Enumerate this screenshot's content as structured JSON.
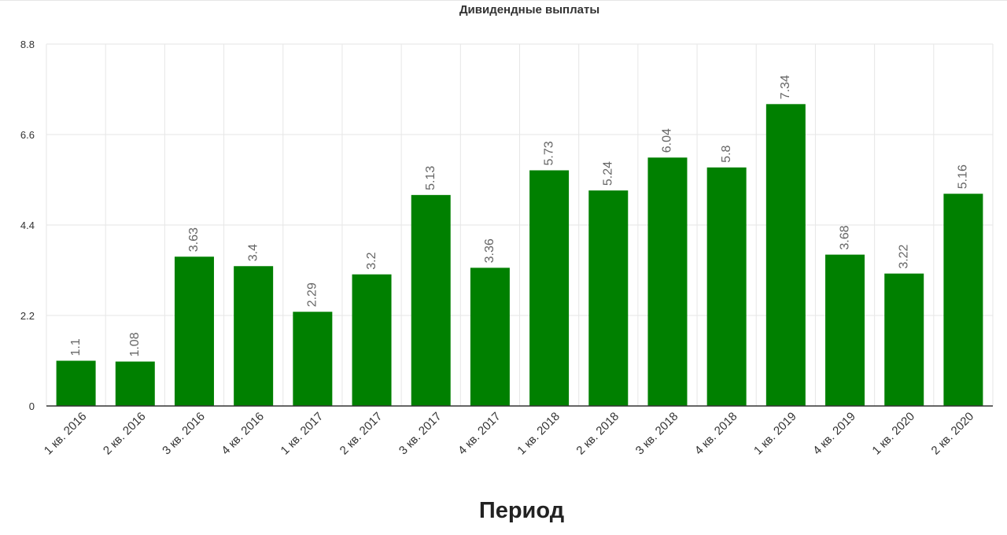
{
  "chart_data": {
    "type": "bar",
    "title": "Дивидендные выплаты",
    "xlabel": "Период",
    "ylabel": "",
    "categories": [
      "1 кв. 2016",
      "2 кв. 2016",
      "3 кв. 2016",
      "4 кв. 2016",
      "1 кв. 2017",
      "2 кв. 2017",
      "3 кв. 2017",
      "4 кв. 2017",
      "1 кв. 2018",
      "2 кв. 2018",
      "3 кв. 2018",
      "4 кв. 2018",
      "1 кв. 2019",
      "4 кв. 2019",
      "1 кв. 2020",
      "2 кв. 2020"
    ],
    "values": [
      1.1,
      1.08,
      3.63,
      3.4,
      2.29,
      3.2,
      5.13,
      3.36,
      5.73,
      5.24,
      6.04,
      5.8,
      7.34,
      3.68,
      3.22,
      5.16
    ],
    "value_labels": [
      "1.1",
      "1.08",
      "3.63",
      "3.4",
      "2.29",
      "3.2",
      "5.13",
      "3.36",
      "5.73",
      "5.24",
      "6.04",
      "5.8",
      "7.34",
      "3.68",
      "3.22",
      "5.16"
    ],
    "ylim": [
      0,
      8.8
    ],
    "yticks": [
      0,
      2.2,
      4.4,
      6.6,
      8.8
    ],
    "ytick_labels": [
      "0",
      "2.2",
      "4.4",
      "6.6",
      "8.8"
    ],
    "grid": true,
    "colors": {
      "bar": "#008000",
      "grid": "#e6e6e6",
      "axis": "#333333",
      "tick_text": "#333333",
      "value_text": "#666666"
    }
  }
}
